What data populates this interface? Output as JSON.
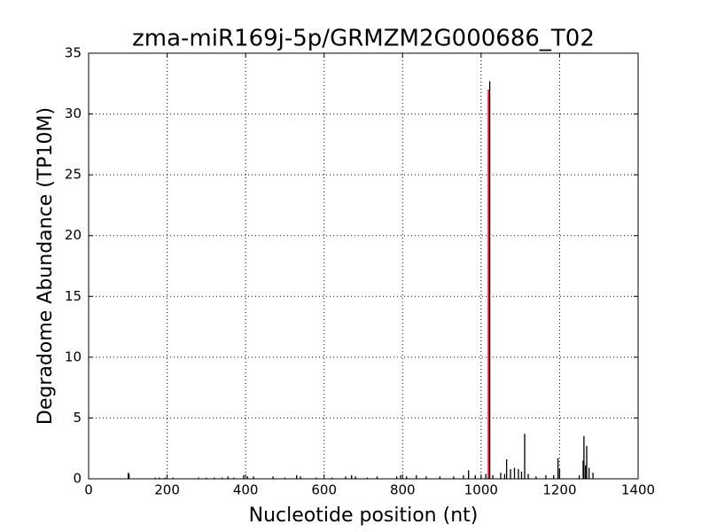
{
  "chart_data": {
    "type": "stem",
    "title": "zma-miR169j-5p/GRMZM2G000686_T02",
    "x_label": "Nucleotide position (nt)",
    "y_label": "Degradome Abundance (TP10M)",
    "x": [
      101,
      103,
      170,
      180,
      195,
      215,
      280,
      300,
      320,
      340,
      355,
      370,
      395,
      405,
      420,
      470,
      500,
      530,
      540,
      580,
      620,
      655,
      670,
      680,
      710,
      735,
      785,
      795,
      810,
      835,
      860,
      895,
      930,
      955,
      968,
      985,
      1000,
      1012,
      1022,
      1030,
      1050,
      1060,
      1065,
      1075,
      1085,
      1095,
      1103,
      1111,
      1120,
      1140,
      1165,
      1185,
      1196,
      1200,
      1250,
      1260,
      1262,
      1266,
      1269,
      1275,
      1285
    ],
    "values": [
      0.5,
      0.4,
      0.1,
      0.1,
      0.1,
      0.1,
      0.1,
      0.1,
      0.1,
      0.1,
      0.2,
      0.1,
      0.3,
      0.2,
      0.2,
      0.2,
      0.1,
      0.3,
      0.2,
      0.1,
      0.1,
      0.2,
      0.3,
      0.2,
      0.1,
      0.2,
      0.2,
      0.3,
      0.2,
      0.3,
      0.2,
      0.2,
      0.2,
      0.3,
      0.7,
      0.3,
      0.2,
      0.4,
      32.7,
      0.3,
      0.5,
      0.4,
      1.6,
      0.8,
      0.9,
      0.8,
      0.6,
      3.7,
      0.4,
      0.2,
      0.3,
      0.3,
      1.7,
      0.8,
      0.3,
      1.5,
      3.5,
      1.1,
      2.7,
      0.9,
      0.5
    ],
    "color": "#000000",
    "highlight": {
      "x": 1019,
      "value": 32,
      "color": "#e31a1c"
    },
    "xlim": [
      0,
      1400
    ],
    "xticks": [
      0,
      200,
      400,
      600,
      800,
      1000,
      1200,
      1400
    ],
    "ylim": [
      0,
      35
    ],
    "yticks": [
      0,
      5,
      10,
      15,
      20,
      25,
      30,
      35
    ],
    "grid": true
  }
}
